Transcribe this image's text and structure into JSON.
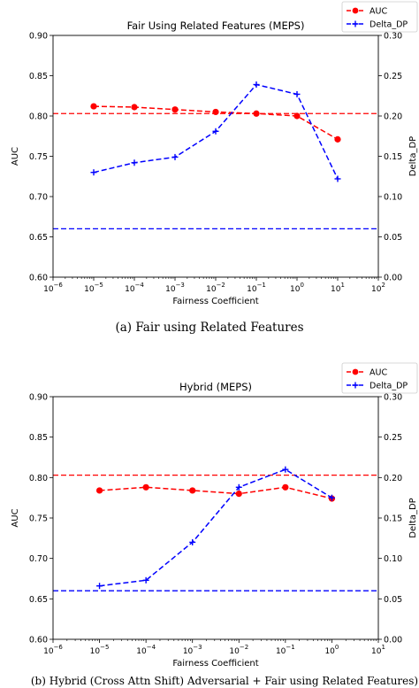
{
  "captions": {
    "a": "(a) Fair using Related Features",
    "b": "(b) Hybrid (Cross Attn Shift) Adversarial + Fair using Related Features)"
  },
  "colors": {
    "auc": "#ff0000",
    "delta_dp": "#0000ff",
    "baseline_auc": "#ff0000",
    "baseline_dp": "#0000ff"
  },
  "chart_data": [
    {
      "type": "line",
      "title": "Fair Using Related Features (MEPS)",
      "xlabel": "Fairness Coefficient",
      "ylabel": "AUC",
      "y2label": "Delta_DP",
      "xscale": "log",
      "xlim": [
        1e-06,
        100
      ],
      "x_ticks": [
        -6,
        -5,
        -4,
        -3,
        -2,
        -1,
        0,
        1,
        2
      ],
      "ylim": [
        0.6,
        0.9
      ],
      "y_ticks": [
        "0.60",
        "0.65",
        "0.70",
        "0.75",
        "0.80",
        "0.85",
        "0.90"
      ],
      "y2lim": [
        0.0,
        0.3
      ],
      "y2_ticks": [
        "0.00",
        "0.05",
        "0.10",
        "0.15",
        "0.20",
        "0.25",
        "0.30"
      ],
      "legend": {
        "placement": "top-right (outside)",
        "entries": [
          "AUC",
          "Delta_DP"
        ]
      },
      "x": [
        1e-05,
        0.0001,
        0.001,
        0.01,
        0.1,
        1,
        10
      ],
      "series": [
        {
          "name": "AUC",
          "axis": "left",
          "values": [
            0.812,
            0.811,
            0.808,
            0.805,
            0.803,
            0.8,
            0.771
          ]
        },
        {
          "name": "Delta_DP",
          "axis": "right",
          "values": [
            0.13,
            0.142,
            0.149,
            0.181,
            0.239,
            0.227,
            0.122
          ]
        }
      ],
      "baselines": {
        "auc": 0.803,
        "delta_dp": 0.06
      }
    },
    {
      "type": "line",
      "title": "Hybrid (MEPS)",
      "xlabel": "Fairness Coefficient",
      "ylabel": "AUC",
      "y2label": "Delta_DP",
      "xscale": "log",
      "xlim": [
        1e-06,
        10
      ],
      "x_ticks": [
        -6,
        -5,
        -4,
        -3,
        -2,
        -1,
        0,
        1
      ],
      "ylim": [
        0.6,
        0.9
      ],
      "y_ticks": [
        "0.60",
        "0.65",
        "0.70",
        "0.75",
        "0.80",
        "0.85",
        "0.90"
      ],
      "y2lim": [
        0.0,
        0.3
      ],
      "y2_ticks": [
        "0.00",
        "0.05",
        "0.10",
        "0.15",
        "0.20",
        "0.25",
        "0.30"
      ],
      "legend": {
        "placement": "top-right (outside)",
        "entries": [
          "AUC",
          "Delta_DP"
        ]
      },
      "x": [
        1e-05,
        0.0001,
        0.001,
        0.01,
        0.1,
        1
      ],
      "series": [
        {
          "name": "AUC",
          "axis": "left",
          "values": [
            0.784,
            0.788,
            0.784,
            0.78,
            0.788,
            0.774
          ]
        },
        {
          "name": "Delta_DP",
          "axis": "right",
          "values": [
            0.066,
            0.073,
            0.12,
            0.188,
            0.21,
            0.175
          ]
        }
      ],
      "baselines": {
        "auc": 0.803,
        "delta_dp": 0.06
      }
    }
  ]
}
